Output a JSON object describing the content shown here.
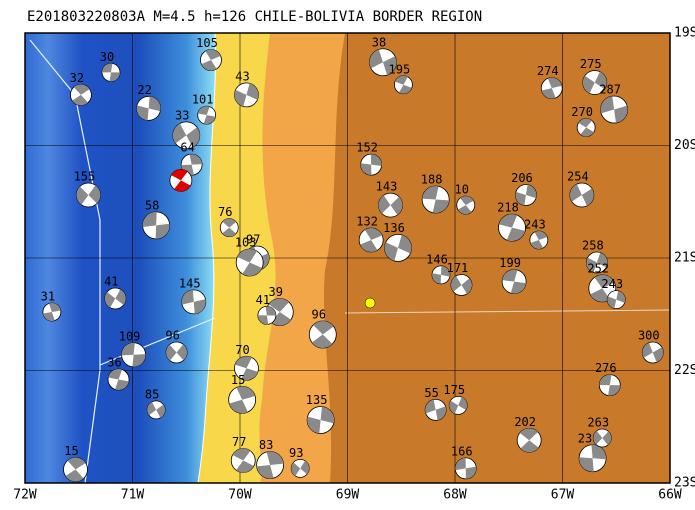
{
  "title": "E201803220803A  M=4.5  h=126  CHILE-BOLIVIA BORDER REGION",
  "lon_range": [
    72,
    66
  ],
  "lat_range": [
    19,
    23
  ],
  "xticks": [
    {
      "value": 72,
      "label": "72W"
    },
    {
      "value": 71,
      "label": "71W"
    },
    {
      "value": 70,
      "label": "70W"
    },
    {
      "value": 69,
      "label": "69W"
    },
    {
      "value": 68,
      "label": "68W"
    },
    {
      "value": 67,
      "label": "67W"
    },
    {
      "value": 66,
      "label": "66W"
    }
  ],
  "yticks": [
    {
      "value": 19,
      "label": "19S"
    },
    {
      "value": 20,
      "label": "20S"
    },
    {
      "value": 21,
      "label": "21S"
    },
    {
      "value": 22,
      "label": "22S"
    },
    {
      "value": 23,
      "label": "23S"
    }
  ],
  "main_event": {
    "lon": 68.79,
    "lat": 21.4,
    "color": "#ffff00"
  },
  "highlight_event": {
    "lon": 70.55,
    "lat": 20.31,
    "color": "#e00000"
  },
  "events": [
    {
      "lon": 71.2,
      "lat": 19.35,
      "depth": "30"
    },
    {
      "lon": 71.48,
      "lat": 19.55,
      "depth": "32"
    },
    {
      "lon": 70.85,
      "lat": 19.67,
      "depth": "22"
    },
    {
      "lon": 70.5,
      "lat": 19.91,
      "depth": "33"
    },
    {
      "lon": 70.31,
      "lat": 19.73,
      "depth": "101"
    },
    {
      "lon": 70.27,
      "lat": 19.24,
      "depth": "105"
    },
    {
      "lon": 69.94,
      "lat": 19.55,
      "depth": "43"
    },
    {
      "lon": 68.67,
      "lat": 19.26,
      "depth": "38"
    },
    {
      "lon": 68.48,
      "lat": 19.46,
      "depth": "195"
    },
    {
      "lon": 67.1,
      "lat": 19.49,
      "depth": "274"
    },
    {
      "lon": 66.7,
      "lat": 19.44,
      "depth": "275"
    },
    {
      "lon": 66.52,
      "lat": 19.68,
      "depth": "287"
    },
    {
      "lon": 66.78,
      "lat": 19.84,
      "depth": "270"
    },
    {
      "lon": 70.45,
      "lat": 20.17,
      "depth": "64"
    },
    {
      "lon": 71.41,
      "lat": 20.44,
      "depth": "155"
    },
    {
      "lon": 70.78,
      "lat": 20.71,
      "depth": "58"
    },
    {
      "lon": 70.1,
      "lat": 20.73,
      "depth": "76"
    },
    {
      "lon": 68.78,
      "lat": 20.17,
      "depth": "152"
    },
    {
      "lon": 68.6,
      "lat": 20.53,
      "depth": "143"
    },
    {
      "lon": 68.18,
      "lat": 20.48,
      "depth": "188"
    },
    {
      "lon": 67.9,
      "lat": 20.53,
      "depth": "10"
    },
    {
      "lon": 67.34,
      "lat": 20.44,
      "depth": "206"
    },
    {
      "lon": 66.82,
      "lat": 20.44,
      "depth": "254"
    },
    {
      "lon": 67.47,
      "lat": 20.73,
      "depth": "218"
    },
    {
      "lon": 67.22,
      "lat": 20.84,
      "depth": "243"
    },
    {
      "lon": 66.68,
      "lat": 21.04,
      "depth": "258"
    },
    {
      "lon": 69.84,
      "lat": 21.0,
      "depth": "97"
    },
    {
      "lon": 69.91,
      "lat": 21.04,
      "depth": "103"
    },
    {
      "lon": 71.75,
      "lat": 21.48,
      "depth": "31"
    },
    {
      "lon": 71.16,
      "lat": 21.36,
      "depth": "41"
    },
    {
      "lon": 70.43,
      "lat": 21.39,
      "depth": "145"
    },
    {
      "lon": 69.63,
      "lat": 21.48,
      "depth": "39"
    },
    {
      "lon": 69.75,
      "lat": 21.51,
      "depth": "41"
    },
    {
      "lon": 70.59,
      "lat": 21.84,
      "depth": "96"
    },
    {
      "lon": 70.99,
      "lat": 21.86,
      "depth": "109"
    },
    {
      "lon": 69.23,
      "lat": 21.68,
      "depth": "96"
    },
    {
      "lon": 68.13,
      "lat": 21.15,
      "depth": "146"
    },
    {
      "lon": 67.94,
      "lat": 21.24,
      "depth": "171"
    },
    {
      "lon": 67.45,
      "lat": 21.21,
      "depth": "199"
    },
    {
      "lon": 66.63,
      "lat": 21.27,
      "depth": "252"
    },
    {
      "lon": 66.5,
      "lat": 21.37,
      "depth": "243"
    },
    {
      "lon": 66.16,
      "lat": 21.84,
      "depth": "300"
    },
    {
      "lon": 69.94,
      "lat": 21.98,
      "depth": "70"
    },
    {
      "lon": 69.98,
      "lat": 22.26,
      "depth": "15"
    },
    {
      "lon": 67.97,
      "lat": 22.31,
      "depth": "175"
    },
    {
      "lon": 68.18,
      "lat": 22.35,
      "depth": "55"
    },
    {
      "lon": 69.97,
      "lat": 22.8,
      "depth": "77"
    },
    {
      "lon": 69.72,
      "lat": 22.84,
      "depth": "83"
    },
    {
      "lon": 69.44,
      "lat": 22.87,
      "depth": "93"
    },
    {
      "lon": 67.9,
      "lat": 22.87,
      "depth": "166"
    },
    {
      "lon": 67.31,
      "lat": 22.62,
      "depth": "202"
    },
    {
      "lon": 66.72,
      "lat": 22.78,
      "depth": "239"
    },
    {
      "lon": 66.63,
      "lat": 22.6,
      "depth": "263"
    },
    {
      "lon": 66.56,
      "lat": 22.13,
      "depth": "276"
    },
    {
      "lon": 71.53,
      "lat": 22.88,
      "depth": "15"
    },
    {
      "lon": 69.25,
      "lat": 22.44,
      "depth": "135"
    },
    {
      "lon": 70.78,
      "lat": 22.35,
      "depth": "85"
    },
    {
      "lon": 71.13,
      "lat": 22.08,
      "depth": "36"
    },
    {
      "lon": 68.78,
      "lat": 20.84,
      "depth": "132"
    },
    {
      "lon": 68.53,
      "lat": 20.91,
      "depth": "136"
    }
  ]
}
